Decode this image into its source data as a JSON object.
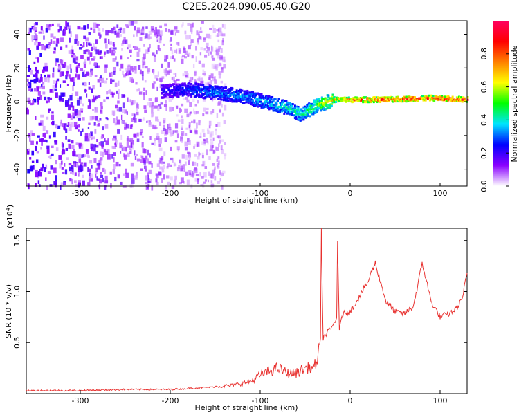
{
  "title": "C2E5.2024.090.05.40.G20",
  "chart_data": [
    {
      "type": "heatmap",
      "xlabel": "Height of straight line (km)",
      "ylabel": "Frequency (Hz)",
      "xlim": [
        -360,
        130
      ],
      "ylim": [
        -50,
        48
      ],
      "x_ticks": [
        -300,
        -200,
        -100,
        0,
        100
      ],
      "y_ticks": [
        -40,
        -20,
        0,
        20,
        40
      ],
      "colorbar": {
        "label": "Normalized spectral amplitude",
        "ticks": [
          0.0,
          0.2,
          0.4,
          0.6,
          0.8
        ],
        "range": [
          0,
          1
        ],
        "colormap": [
          "#ffffff",
          "#8a00ff",
          "#0000ff",
          "#00e5ff",
          "#00ff00",
          "#ffff00",
          "#ff8000",
          "#ff0000",
          "#ff0060"
        ]
      },
      "signal_track": [
        {
          "x": -205,
          "f": 6,
          "amp": 0.25
        },
        {
          "x": -180,
          "f": 7,
          "amp": 0.3
        },
        {
          "x": -150,
          "f": 5,
          "amp": 0.35
        },
        {
          "x": -120,
          "f": 3,
          "amp": 0.35
        },
        {
          "x": -90,
          "f": -1,
          "amp": 0.4
        },
        {
          "x": -70,
          "f": -4,
          "amp": 0.45
        },
        {
          "x": -55,
          "f": -8,
          "amp": 0.45
        },
        {
          "x": -40,
          "f": -3,
          "amp": 0.55
        },
        {
          "x": -20,
          "f": 1,
          "amp": 0.7
        },
        {
          "x": 0,
          "f": 1,
          "amp": 0.85
        },
        {
          "x": 40,
          "f": 1,
          "amp": 0.95
        },
        {
          "x": 90,
          "f": 2,
          "amp": 0.9
        },
        {
          "x": 130,
          "f": 1,
          "amp": 0.95
        }
      ]
    },
    {
      "type": "line",
      "xlabel": "Height of straight line (km)",
      "ylabel": "SNR (10 * v/v)",
      "y_scale_label": "(x10",
      "y_scale_exponent": "4",
      "y_scale_suffix": ")",
      "xlim": [
        -360,
        130
      ],
      "ylim": [
        0,
        1.62
      ],
      "x_ticks": [
        -300,
        -200,
        -100,
        0,
        100
      ],
      "y_ticks": [
        0.5,
        1.0,
        1.5
      ],
      "y_tick_labels": [
        "0.5",
        "1.0",
        "1.5"
      ],
      "series": [
        {
          "color": "#e8312f",
          "x": [
            -360,
            -300,
            -250,
            -200,
            -160,
            -130,
            -110,
            -100,
            -90,
            -80,
            -70,
            -60,
            -50,
            -40,
            -33,
            -32,
            -30,
            -25,
            -20,
            -15,
            -14,
            -12,
            -10,
            -5,
            0,
            10,
            20,
            25,
            28,
            32,
            40,
            50,
            60,
            70,
            75,
            80,
            85,
            90,
            100,
            110,
            120,
            125,
            130
          ],
          "y": [
            0.03,
            0.03,
            0.04,
            0.04,
            0.06,
            0.08,
            0.12,
            0.18,
            0.22,
            0.25,
            0.2,
            0.2,
            0.25,
            0.25,
            0.45,
            1.62,
            0.55,
            0.6,
            0.65,
            0.75,
            1.47,
            0.6,
            0.75,
            0.8,
            0.8,
            0.95,
            1.1,
            1.22,
            1.28,
            1.15,
            0.9,
            0.8,
            0.78,
            0.85,
            1.05,
            1.28,
            1.1,
            0.9,
            0.75,
            0.78,
            0.85,
            0.95,
            1.18
          ]
        }
      ]
    }
  ]
}
